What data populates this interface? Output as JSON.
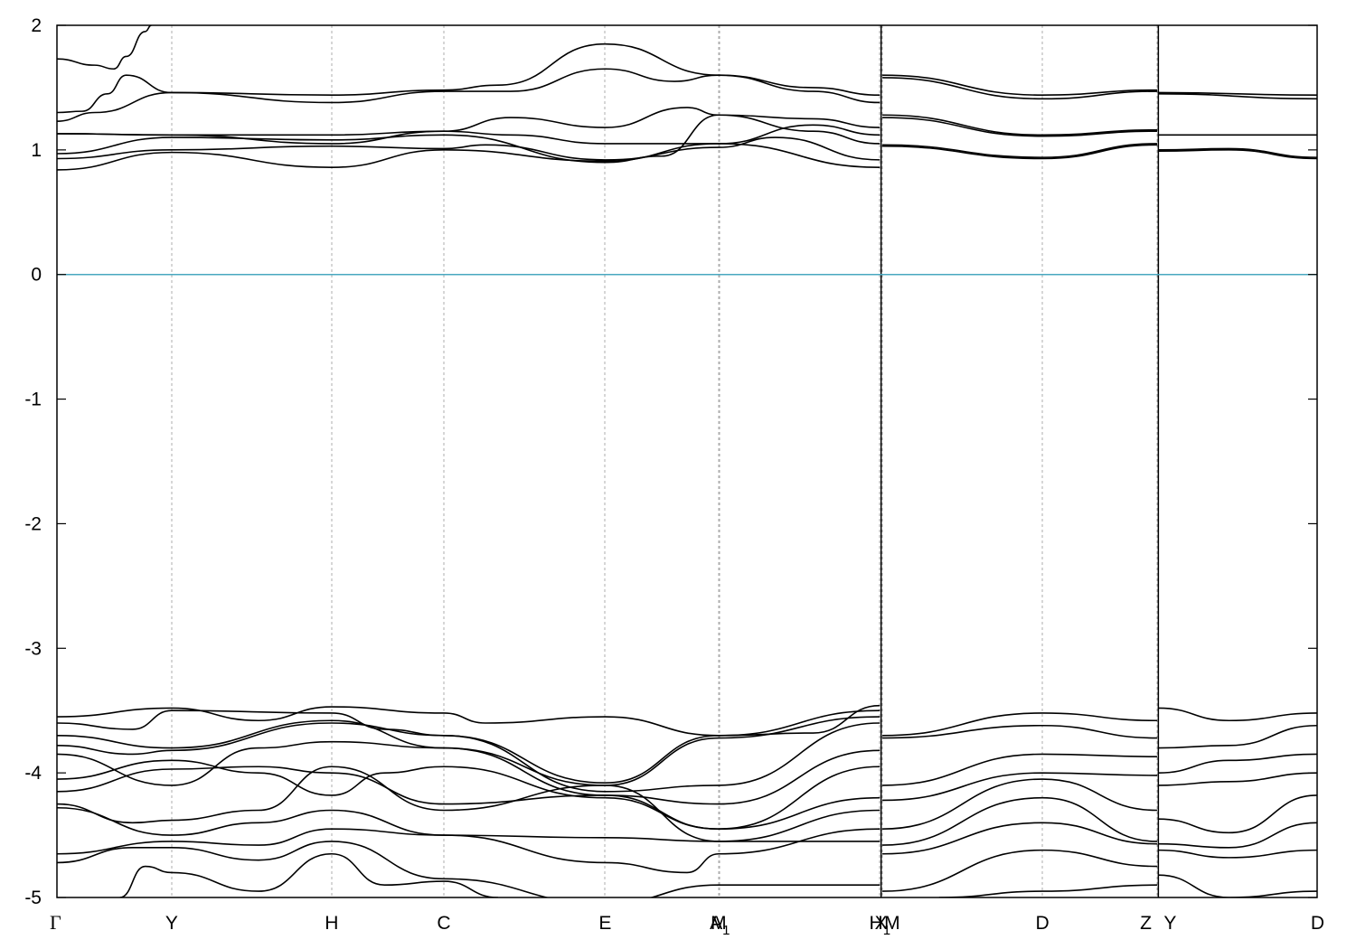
{
  "chart_data": {
    "type": "line",
    "title": "",
    "xlabel": "",
    "ylabel": "",
    "ylim": [
      -5,
      2
    ],
    "yticks": [
      "2",
      "1",
      "0",
      "-1",
      "-2",
      "-3",
      "-4",
      "-5"
    ],
    "ytick_values": [
      2,
      1,
      0,
      -1,
      -2,
      -3,
      -4,
      -5
    ],
    "grid": "vertical dashed at high-symmetry points",
    "xlim": [
      0,
      1.0
    ],
    "kpoints": [
      {
        "label": "Γ",
        "x": 0.0
      },
      {
        "label": "Y",
        "x": 0.091
      },
      {
        "label": "H",
        "x": 0.218
      },
      {
        "label": "C",
        "x": 0.307
      },
      {
        "label": "E",
        "x": 0.435
      },
      {
        "label": "M",
        "x": 0.525
      },
      {
        "label": "A",
        "sub": "1",
        "x": 0.526
      },
      {
        "label": "H",
        "sub": "1",
        "x": 0.653
      },
      {
        "label": "X",
        "x": 0.654
      },
      {
        "label": "M",
        "x": 0.655
      },
      {
        "label": "D",
        "x": 0.782
      },
      {
        "label": "Z",
        "x": 0.873
      },
      {
        "label": "Y",
        "x": 0.874
      },
      {
        "label": "D",
        "x": 1.0
      }
    ],
    "fermi_level": {
      "value": 0,
      "color": "#4aa8c0"
    },
    "line_color": "#000000",
    "series": [
      {
        "values": [
          [
            0.0,
            1.73
          ],
          [
            0.03,
            1.68
          ],
          [
            0.045,
            1.65
          ],
          [
            0.055,
            1.75
          ],
          [
            0.07,
            1.95
          ],
          [
            0.075,
            2.0
          ]
        ]
      },
      {
        "values": [
          [
            0.0,
            1.3
          ],
          [
            0.02,
            1.31
          ],
          [
            0.04,
            1.45
          ],
          [
            0.055,
            1.6
          ],
          [
            0.091,
            1.46
          ],
          [
            0.218,
            1.44
          ],
          [
            0.307,
            1.48
          ],
          [
            0.35,
            1.52
          ],
          [
            0.435,
            1.85
          ],
          [
            0.525,
            1.6
          ],
          [
            0.6,
            1.5
          ],
          [
            0.653,
            1.44
          ]
        ]
      },
      {
        "values": [
          [
            0.0,
            1.23
          ],
          [
            0.03,
            1.3
          ],
          [
            0.091,
            1.46
          ],
          [
            0.218,
            1.38
          ],
          [
            0.307,
            1.47
          ],
          [
            0.36,
            1.47
          ],
          [
            0.435,
            1.65
          ],
          [
            0.49,
            1.55
          ],
          [
            0.525,
            1.6
          ],
          [
            0.6,
            1.47
          ],
          [
            0.653,
            1.38
          ]
        ]
      },
      {
        "values": [
          [
            0.0,
            1.13
          ],
          [
            0.091,
            1.12
          ],
          [
            0.218,
            1.12
          ],
          [
            0.307,
            1.15
          ],
          [
            0.36,
            1.26
          ],
          [
            0.435,
            1.18
          ],
          [
            0.5,
            1.34
          ],
          [
            0.525,
            1.28
          ],
          [
            0.6,
            1.25
          ],
          [
            0.653,
            1.18
          ]
        ]
      },
      {
        "values": [
          [
            0.0,
            1.13
          ],
          [
            0.091,
            1.12
          ],
          [
            0.218,
            1.05
          ],
          [
            0.307,
            1.15
          ],
          [
            0.36,
            1.12
          ],
          [
            0.435,
            1.05
          ],
          [
            0.525,
            1.05
          ],
          [
            0.6,
            1.2
          ],
          [
            0.653,
            1.12
          ]
        ]
      },
      {
        "values": [
          [
            0.0,
            0.97
          ],
          [
            0.091,
            1.1
          ],
          [
            0.218,
            1.08
          ],
          [
            0.307,
            1.12
          ],
          [
            0.435,
            0.9
          ],
          [
            0.48,
            0.95
          ],
          [
            0.525,
            1.28
          ],
          [
            0.6,
            1.15
          ],
          [
            0.653,
            1.05
          ]
        ]
      },
      {
        "values": [
          [
            0.0,
            0.93
          ],
          [
            0.091,
            1.0
          ],
          [
            0.218,
            1.03
          ],
          [
            0.307,
            1.01
          ],
          [
            0.34,
            1.04
          ],
          [
            0.435,
            0.92
          ],
          [
            0.525,
            1.02
          ],
          [
            0.57,
            1.1
          ],
          [
            0.653,
            0.92
          ]
        ]
      },
      {
        "values": [
          [
            0.0,
            0.84
          ],
          [
            0.091,
            0.98
          ],
          [
            0.218,
            0.86
          ],
          [
            0.307,
            1.0
          ],
          [
            0.435,
            0.91
          ],
          [
            0.525,
            1.05
          ],
          [
            0.653,
            0.86
          ]
        ]
      },
      {
        "values": [
          [
            0.655,
            1.6
          ],
          [
            0.782,
            1.44
          ],
          [
            0.873,
            1.48
          ]
        ]
      },
      {
        "values": [
          [
            0.655,
            1.58
          ],
          [
            0.782,
            1.41
          ],
          [
            0.873,
            1.47
          ]
        ]
      },
      {
        "values": [
          [
            0.655,
            1.28
          ],
          [
            0.782,
            1.12
          ],
          [
            0.873,
            1.16
          ]
        ]
      },
      {
        "values": [
          [
            0.655,
            1.26
          ],
          [
            0.782,
            1.11
          ],
          [
            0.873,
            1.15
          ]
        ]
      },
      {
        "values": [
          [
            0.655,
            1.04
          ],
          [
            0.782,
            0.94
          ],
          [
            0.873,
            1.05
          ]
        ]
      },
      {
        "values": [
          [
            0.655,
            1.03
          ],
          [
            0.782,
            0.93
          ],
          [
            0.873,
            1.04
          ]
        ]
      },
      {
        "values": [
          [
            0.874,
            1.46
          ],
          [
            1.0,
            1.44
          ]
        ]
      },
      {
        "values": [
          [
            0.874,
            1.45
          ],
          [
            1.0,
            1.41
          ]
        ]
      },
      {
        "values": [
          [
            0.874,
            1.12
          ],
          [
            1.0,
            1.12
          ]
        ]
      },
      {
        "values": [
          [
            0.874,
            1.0
          ],
          [
            0.93,
            1.01
          ],
          [
            1.0,
            0.94
          ]
        ]
      },
      {
        "values": [
          [
            0.874,
            0.99
          ],
          [
            0.93,
            1.0
          ],
          [
            1.0,
            0.93
          ]
        ]
      },
      {
        "values": [
          [
            0.0,
            -3.55
          ],
          [
            0.091,
            -3.48
          ],
          [
            0.16,
            -3.58
          ],
          [
            0.218,
            -3.47
          ],
          [
            0.307,
            -3.52
          ],
          [
            0.34,
            -3.6
          ],
          [
            0.435,
            -3.55
          ],
          [
            0.525,
            -3.7
          ],
          [
            0.6,
            -3.68
          ],
          [
            0.653,
            -3.46
          ]
        ]
      },
      {
        "values": [
          [
            0.0,
            -3.6
          ],
          [
            0.06,
            -3.65
          ],
          [
            0.091,
            -3.5
          ],
          [
            0.218,
            -3.52
          ],
          [
            0.26,
            -3.65
          ],
          [
            0.307,
            -3.7
          ],
          [
            0.435,
            -4.08
          ],
          [
            0.525,
            -3.7
          ],
          [
            0.653,
            -3.5
          ]
        ]
      },
      {
        "values": [
          [
            0.0,
            -3.7
          ],
          [
            0.091,
            -3.8
          ],
          [
            0.218,
            -3.58
          ],
          [
            0.307,
            -3.8
          ],
          [
            0.435,
            -4.1
          ],
          [
            0.525,
            -3.72
          ],
          [
            0.653,
            -3.55
          ]
        ]
      },
      {
        "values": [
          [
            0.0,
            -3.78
          ],
          [
            0.06,
            -3.85
          ],
          [
            0.091,
            -3.82
          ],
          [
            0.218,
            -3.6
          ],
          [
            0.307,
            -3.7
          ],
          [
            0.435,
            -4.15
          ],
          [
            0.525,
            -4.1
          ],
          [
            0.653,
            -3.6
          ]
        ]
      },
      {
        "values": [
          [
            0.0,
            -3.85
          ],
          [
            0.091,
            -4.1
          ],
          [
            0.16,
            -3.8
          ],
          [
            0.218,
            -3.75
          ],
          [
            0.307,
            -3.8
          ],
          [
            0.435,
            -4.18
          ],
          [
            0.525,
            -4.25
          ],
          [
            0.653,
            -3.82
          ]
        ]
      },
      {
        "values": [
          [
            0.0,
            -4.05
          ],
          [
            0.091,
            -3.9
          ],
          [
            0.16,
            -4.0
          ],
          [
            0.218,
            -4.18
          ],
          [
            0.26,
            -4.0
          ],
          [
            0.307,
            -3.95
          ],
          [
            0.435,
            -4.2
          ],
          [
            0.525,
            -4.45
          ],
          [
            0.653,
            -3.95
          ]
        ]
      },
      {
        "values": [
          [
            0.0,
            -4.15
          ],
          [
            0.091,
            -3.97
          ],
          [
            0.16,
            -3.95
          ],
          [
            0.218,
            -4.0
          ],
          [
            0.307,
            -4.25
          ],
          [
            0.435,
            -4.18
          ],
          [
            0.525,
            -4.45
          ],
          [
            0.653,
            -4.2
          ]
        ]
      },
      {
        "values": [
          [
            0.0,
            -4.25
          ],
          [
            0.06,
            -4.4
          ],
          [
            0.091,
            -4.38
          ],
          [
            0.16,
            -4.3
          ],
          [
            0.218,
            -3.95
          ],
          [
            0.307,
            -4.3
          ],
          [
            0.435,
            -4.1
          ],
          [
            0.525,
            -4.55
          ],
          [
            0.653,
            -4.3
          ]
        ]
      },
      {
        "values": [
          [
            0.0,
            -4.28
          ],
          [
            0.091,
            -4.5
          ],
          [
            0.16,
            -4.4
          ],
          [
            0.218,
            -4.3
          ],
          [
            0.307,
            -4.5
          ],
          [
            0.435,
            -4.52
          ],
          [
            0.525,
            -4.55
          ],
          [
            0.653,
            -4.55
          ]
        ]
      },
      {
        "values": [
          [
            0.0,
            -4.65
          ],
          [
            0.091,
            -4.55
          ],
          [
            0.16,
            -4.58
          ],
          [
            0.218,
            -4.45
          ],
          [
            0.307,
            -4.5
          ],
          [
            0.435,
            -4.72
          ],
          [
            0.5,
            -4.8
          ],
          [
            0.525,
            -4.65
          ],
          [
            0.653,
            -4.45
          ]
        ]
      },
      {
        "values": [
          [
            0.0,
            -4.72
          ],
          [
            0.06,
            -4.6
          ],
          [
            0.091,
            -4.6
          ],
          [
            0.16,
            -4.7
          ],
          [
            0.218,
            -4.55
          ],
          [
            0.307,
            -4.85
          ],
          [
            0.435,
            -5.05
          ],
          [
            0.525,
            -4.9
          ],
          [
            0.653,
            -4.9
          ]
        ]
      },
      {
        "values": [
          [
            0.05,
            -5.0
          ],
          [
            0.07,
            -4.75
          ],
          [
            0.091,
            -4.8
          ],
          [
            0.16,
            -4.95
          ],
          [
            0.218,
            -4.65
          ],
          [
            0.26,
            -4.9
          ],
          [
            0.307,
            -4.87
          ],
          [
            0.35,
            -5.0
          ]
        ]
      },
      {
        "values": [
          [
            0.655,
            -3.7
          ],
          [
            0.782,
            -3.52
          ],
          [
            0.873,
            -3.58
          ]
        ]
      },
      {
        "values": [
          [
            0.655,
            -3.72
          ],
          [
            0.782,
            -3.62
          ],
          [
            0.873,
            -3.72
          ]
        ]
      },
      {
        "values": [
          [
            0.655,
            -4.1
          ],
          [
            0.782,
            -3.85
          ],
          [
            0.873,
            -3.87
          ]
        ]
      },
      {
        "values": [
          [
            0.655,
            -4.22
          ],
          [
            0.782,
            -4.0
          ],
          [
            0.873,
            -4.02
          ]
        ]
      },
      {
        "values": [
          [
            0.655,
            -4.45
          ],
          [
            0.782,
            -4.05
          ],
          [
            0.873,
            -4.3
          ]
        ]
      },
      {
        "values": [
          [
            0.655,
            -4.58
          ],
          [
            0.782,
            -4.2
          ],
          [
            0.873,
            -4.55
          ]
        ]
      },
      {
        "values": [
          [
            0.655,
            -4.65
          ],
          [
            0.782,
            -4.4
          ],
          [
            0.873,
            -4.57
          ]
        ]
      },
      {
        "values": [
          [
            0.655,
            -4.95
          ],
          [
            0.782,
            -4.62
          ],
          [
            0.873,
            -4.75
          ]
        ]
      },
      {
        "values": [
          [
            0.7,
            -5.0
          ],
          [
            0.782,
            -4.95
          ],
          [
            0.873,
            -4.9
          ]
        ]
      },
      {
        "values": [
          [
            0.874,
            -3.48
          ],
          [
            0.93,
            -3.58
          ],
          [
            1.0,
            -3.52
          ]
        ]
      },
      {
        "values": [
          [
            0.874,
            -3.8
          ],
          [
            0.93,
            -3.78
          ],
          [
            1.0,
            -3.62
          ]
        ]
      },
      {
        "values": [
          [
            0.874,
            -4.0
          ],
          [
            0.93,
            -3.9
          ],
          [
            1.0,
            -3.85
          ]
        ]
      },
      {
        "values": [
          [
            0.874,
            -4.1
          ],
          [
            0.93,
            -4.07
          ],
          [
            1.0,
            -4.0
          ]
        ]
      },
      {
        "values": [
          [
            0.874,
            -4.37
          ],
          [
            0.93,
            -4.48
          ],
          [
            1.0,
            -4.18
          ]
        ]
      },
      {
        "values": [
          [
            0.874,
            -4.57
          ],
          [
            0.93,
            -4.6
          ],
          [
            1.0,
            -4.4
          ]
        ]
      },
      {
        "values": [
          [
            0.874,
            -4.62
          ],
          [
            0.93,
            -4.68
          ],
          [
            1.0,
            -4.62
          ]
        ]
      },
      {
        "values": [
          [
            0.874,
            -4.82
          ],
          [
            0.93,
            -5.0
          ],
          [
            1.0,
            -4.95
          ]
        ]
      }
    ]
  }
}
